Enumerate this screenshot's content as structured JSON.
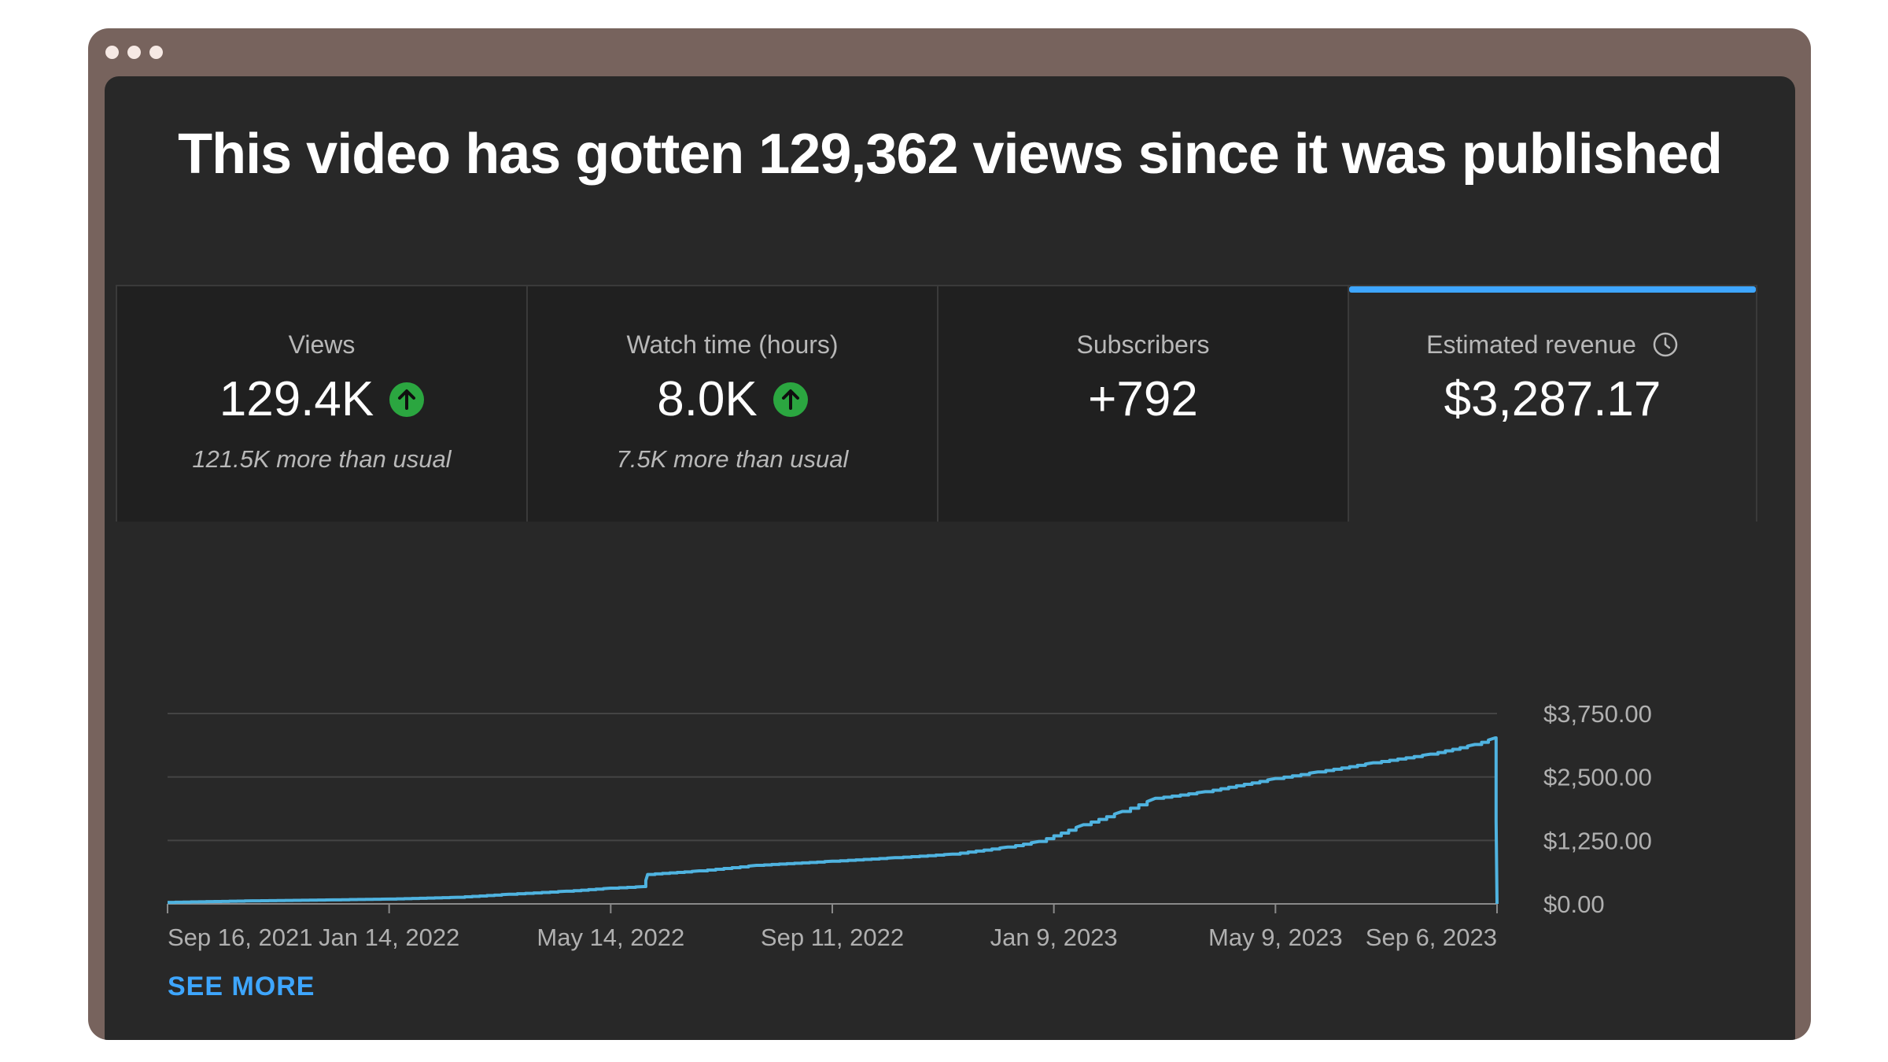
{
  "headline": "This video has gotten 129,362 views since it was published",
  "cards": [
    {
      "label": "Views",
      "value": "129.4K",
      "sub": "121.5K more than usual",
      "trend_icon": "arrow-up-circle-icon"
    },
    {
      "label": "Watch time (hours)",
      "value": "8.0K",
      "sub": "7.5K more than usual",
      "trend_icon": "arrow-up-circle-icon"
    },
    {
      "label": "Subscribers",
      "value": "+792",
      "sub": ""
    },
    {
      "label": "Estimated revenue",
      "value": "$3,287.17",
      "sub": "",
      "info_icon": "clock-icon",
      "selected": true
    }
  ],
  "colors": {
    "accent": "#3ea6ff",
    "trend_up": "#2ba640",
    "line": "#4fb3e0",
    "background": "#282828"
  },
  "chart_data": {
    "type": "line",
    "x_tick_labels": [
      "Sep 16, 2021",
      "Jan 14, 2022",
      "May 14, 2022",
      "Sep 11, 2022",
      "Jan 9, 2023",
      "May 9, 2023",
      "Sep 6, 2023"
    ],
    "y_tick_labels": [
      "$3,750.00",
      "$2,500.00",
      "$1,250.00",
      "$0.00"
    ],
    "y_ticks": [
      3750,
      2500,
      1250,
      0
    ],
    "ylim": [
      0,
      3750
    ],
    "xlim": [
      "2021-09-16",
      "2023-09-06"
    ],
    "grid": true,
    "y_axis_side": "right",
    "series": [
      {
        "points": [
          [
            "2021-09-16",
            30
          ],
          [
            "2021-11-01",
            60
          ],
          [
            "2021-12-15",
            80
          ],
          [
            "2022-01-14",
            95
          ],
          [
            "2022-02-20",
            130
          ],
          [
            "2022-03-20",
            190
          ],
          [
            "2022-04-20",
            250
          ],
          [
            "2022-05-14",
            310
          ],
          [
            "2022-06-01",
            340
          ],
          [
            "2022-06-03",
            580
          ],
          [
            "2022-07-01",
            650
          ],
          [
            "2022-08-01",
            760
          ],
          [
            "2022-09-11",
            840
          ],
          [
            "2022-10-15",
            910
          ],
          [
            "2022-11-15",
            980
          ],
          [
            "2022-12-15",
            1120
          ],
          [
            "2023-01-01",
            1230
          ],
          [
            "2023-01-25",
            1560
          ],
          [
            "2023-02-15",
            1820
          ],
          [
            "2023-03-05",
            2080
          ],
          [
            "2023-04-01",
            2210
          ],
          [
            "2023-05-09",
            2470
          ],
          [
            "2023-06-01",
            2600
          ],
          [
            "2023-07-01",
            2780
          ],
          [
            "2023-08-01",
            2950
          ],
          [
            "2023-08-25",
            3140
          ],
          [
            "2023-09-05",
            3270
          ],
          [
            "2023-09-06",
            0
          ]
        ]
      }
    ]
  },
  "see_more_label": "SEE MORE"
}
